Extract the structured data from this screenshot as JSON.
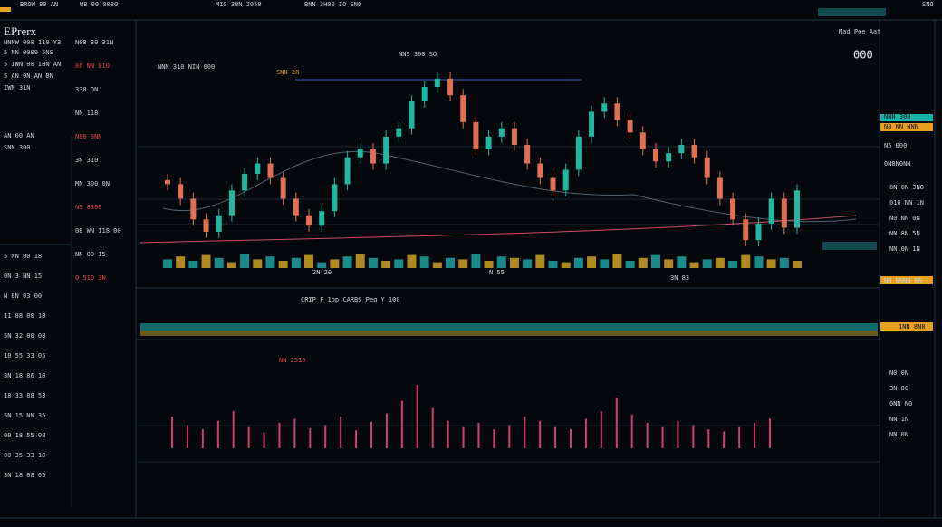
{
  "header": {
    "items": [
      "BROW 80 AN",
      "W8 00 0080",
      "MIS 38N 2050",
      "BNN 3H00 IO SNO",
      "SNO"
    ]
  },
  "left": {
    "title": "EPrerx",
    "subtitle": "NNNW 000 110 Y3",
    "items": [
      "5 NN 0000 5NS",
      "5 IWN 00 IBN AN",
      "5 AN 0N AN BN",
      "IWN 31N",
      "AN 00 AN",
      "SNN 300"
    ],
    "rows": [
      "5 NN 00 18",
      "0N 3 NN 15",
      "N 8N 03 00",
      "11 88 00 18",
      "5N 32 00 08",
      "10 55 33 05",
      "3N 18 86 18",
      "18 33 88 53",
      "5N 15 NN 35",
      "00 18 55 08",
      "00 35 33 18",
      "3N 18 08 05"
    ],
    "side": [
      "N08 30 31N",
      "86 NN 810",
      "330 DN",
      "NN 118",
      "N80 3NN",
      "3N 310",
      "MN 300 0N",
      "NS 8100",
      "08 WN 118 00",
      "NN 00 15",
      "0 510 3N"
    ]
  },
  "chart": {
    "labels": [
      "NNN 310 NIN 000",
      "SNN 28",
      "NNS 300 SO",
      "2N 20",
      "N 55",
      "3N 83"
    ],
    "candles": {
      "open": [
        47,
        45,
        38,
        28,
        22,
        30,
        42,
        50,
        55,
        48,
        38,
        30,
        25,
        32,
        45,
        58,
        62,
        55,
        68,
        72,
        85,
        92,
        96,
        88,
        75,
        62,
        68,
        72,
        64,
        55,
        48,
        42,
        52,
        68,
        80,
        84,
        76,
        70,
        62,
        56,
        60,
        64,
        58,
        48,
        38,
        28,
        18,
        26,
        38,
        24
      ],
      "close": [
        45,
        38,
        28,
        22,
        30,
        42,
        50,
        55,
        48,
        38,
        30,
        25,
        32,
        45,
        58,
        62,
        55,
        68,
        72,
        85,
        92,
        96,
        88,
        75,
        62,
        68,
        72,
        64,
        55,
        48,
        42,
        52,
        68,
        80,
        84,
        76,
        70,
        62,
        56,
        60,
        64,
        58,
        48,
        38,
        28,
        18,
        26,
        38,
        24,
        42
      ],
      "high": [
        50,
        48,
        41,
        31,
        33,
        45,
        53,
        58,
        58,
        51,
        41,
        33,
        35,
        48,
        61,
        65,
        65,
        71,
        75,
        88,
        95,
        99,
        99,
        91,
        78,
        71,
        75,
        75,
        67,
        58,
        51,
        55,
        71,
        83,
        87,
        87,
        79,
        73,
        65,
        63,
        67,
        67,
        61,
        51,
        41,
        31,
        29,
        41,
        41,
        45
      ],
      "low": [
        42,
        35,
        25,
        19,
        19,
        27,
        39,
        47,
        45,
        35,
        27,
        22,
        22,
        29,
        42,
        55,
        52,
        52,
        65,
        69,
        82,
        89,
        85,
        72,
        59,
        59,
        65,
        61,
        52,
        45,
        39,
        39,
        49,
        65,
        77,
        73,
        67,
        59,
        53,
        53,
        57,
        55,
        45,
        35,
        25,
        15,
        15,
        23,
        21,
        21
      ]
    },
    "volume": [
      6,
      8,
      5,
      9,
      7,
      4,
      10,
      6,
      8,
      5,
      7,
      9,
      4,
      6,
      8,
      10,
      7,
      5,
      6,
      9,
      8,
      4,
      7,
      6,
      10,
      5,
      8,
      7,
      6,
      9,
      5,
      4,
      7,
      8,
      6,
      10,
      5,
      7,
      9,
      6,
      8,
      4,
      6,
      7,
      5,
      9,
      8,
      6,
      7,
      5
    ],
    "mid_title": "CRIP F  1op CARBS Peq Y 100",
    "lower_label": "NN 2510",
    "lower": [
      30,
      22,
      18,
      26,
      35,
      20,
      15,
      24,
      28,
      19,
      22,
      30,
      17,
      25,
      33,
      45,
      60,
      38,
      26,
      20,
      24,
      18,
      22,
      30,
      26,
      20,
      18,
      28,
      35,
      48,
      32,
      24,
      20,
      26,
      22,
      18,
      16,
      20,
      24,
      28
    ]
  },
  "right": {
    "title": "Mad Poe Aat",
    "price": "000",
    "badges": [
      "NNN 300",
      "N8 NN NNN",
      "N5 000",
      "0N8N0NN",
      "NN NNNN NN"
    ],
    "rows": [
      "1NN 8N8",
      "8N 0N 3N8",
      "010 NN 1N",
      "N0 NN 0N",
      "NN 8N 5N",
      "NN 0N 1N",
      "N0 0N",
      "3N 80",
      "0NN N0",
      "NN 1N",
      "NN 0N"
    ]
  }
}
